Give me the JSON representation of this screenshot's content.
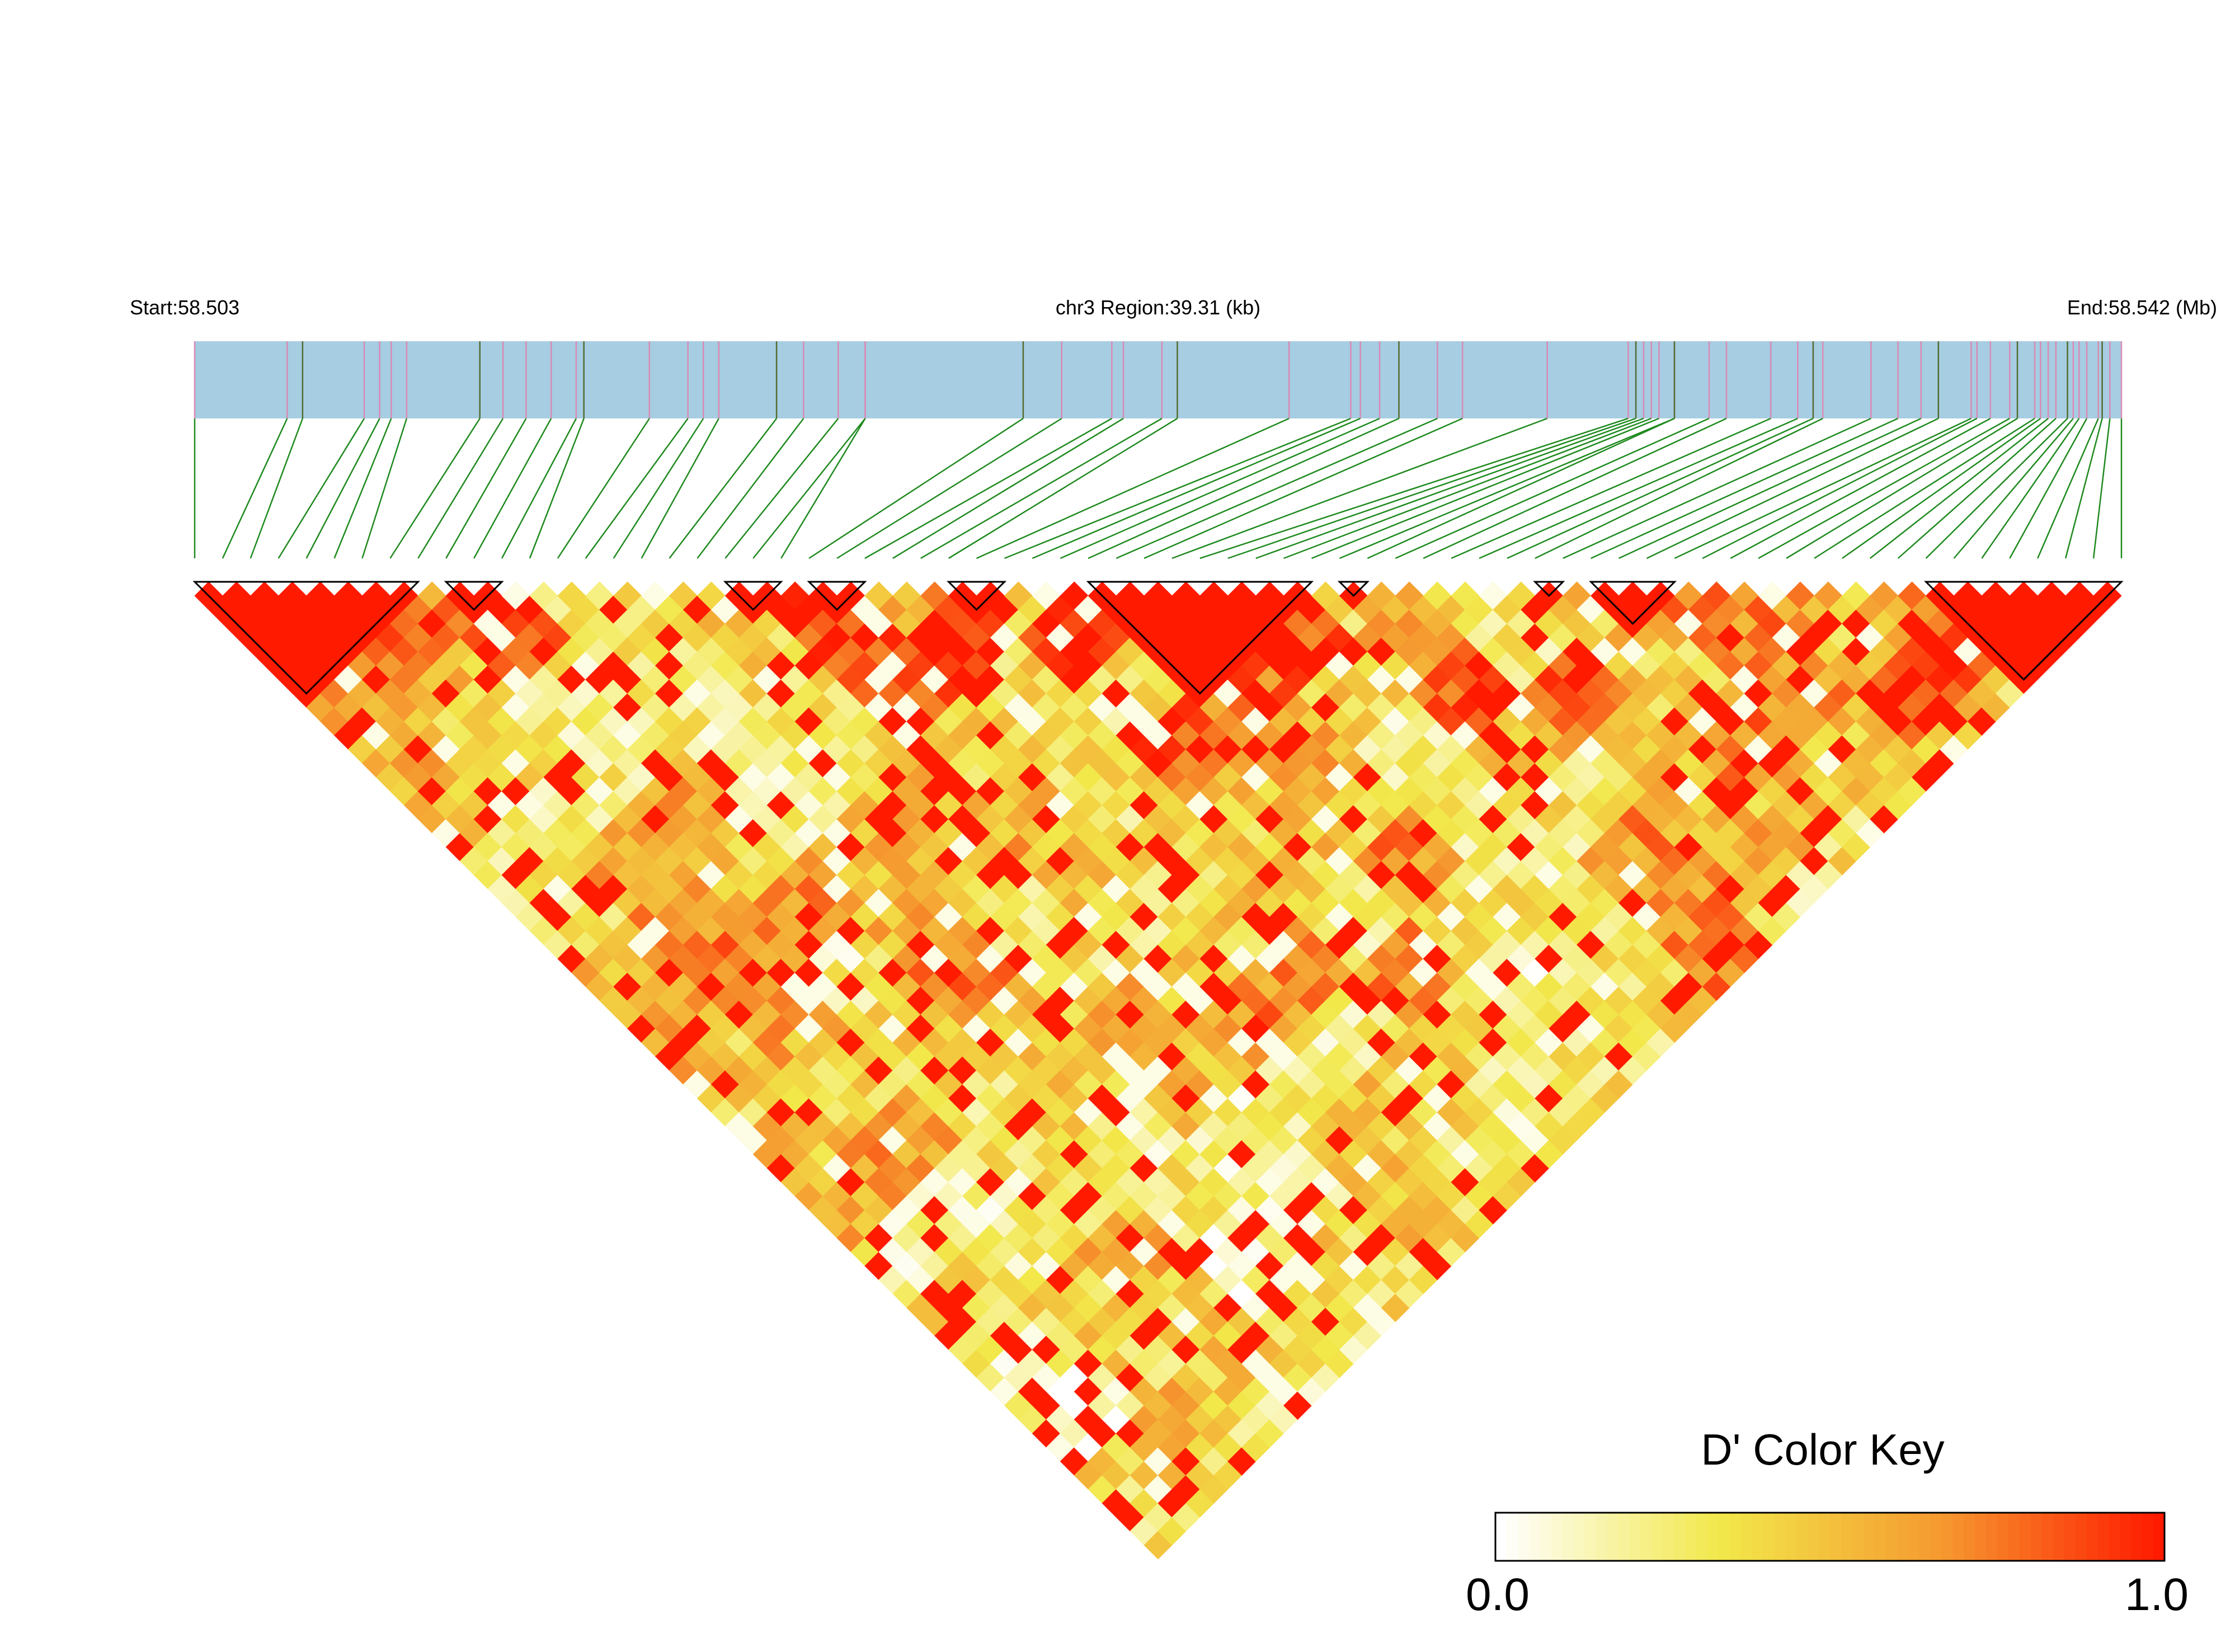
{
  "chart_data": {
    "type": "heatmap",
    "subtype": "linkage-disequilibrium-triangle",
    "header": {
      "start_label": "Start:58.503",
      "region_label": "chr3 Region:39.31 (kb)",
      "end_label": "End:58.542 (Mb)"
    },
    "region_start_mb": 58.503,
    "region_end_mb": 58.542,
    "region_length_kb": 39.31,
    "chromosome": "chr3",
    "snp_count": 70,
    "snp_positions_fraction": [
      0,
      0.048,
      0.056,
      0.088,
      0.096,
      0.102,
      0.11,
      0.148,
      0.16,
      0.172,
      0.185,
      0.198,
      0.202,
      0.236,
      0.256,
      0.264,
      0.272,
      0.302,
      0.316,
      0.334,
      0.348,
      0.348,
      0.43,
      0.45,
      0.476,
      0.482,
      0.502,
      0.51,
      0.568,
      0.6,
      0.605,
      0.615,
      0.625,
      0.645,
      0.658,
      0.702,
      0.748,
      0.752,
      0.76,
      0.768,
      0.786,
      0.795,
      0.84,
      0.922,
      0.925,
      0.942,
      0.958,
      0.972,
      0.978,
      0.99,
      0.744,
      0.768,
      0.756,
      0.818,
      0.832,
      0.845,
      0.87,
      0.884,
      0.896,
      0.905,
      0.932,
      0.946,
      0.955,
      0.962,
      0.966,
      0.975,
      0.982,
      0.988,
      0.994,
      1
    ],
    "ld_blocks_snp_index": [
      [
        0,
        8
      ],
      [
        9,
        11
      ],
      [
        19,
        21
      ],
      [
        22,
        24
      ],
      [
        27,
        29
      ],
      [
        32,
        40
      ],
      [
        41,
        42
      ],
      [
        48,
        49
      ],
      [
        50,
        53
      ],
      [
        62,
        69
      ]
    ],
    "color_key": {
      "title": "D' Color Key",
      "min_label": "0.0",
      "max_label": "1.0",
      "colors": [
        "#ffffff",
        "#f2e84a",
        "#f59a30",
        "#ff1a00"
      ]
    }
  }
}
